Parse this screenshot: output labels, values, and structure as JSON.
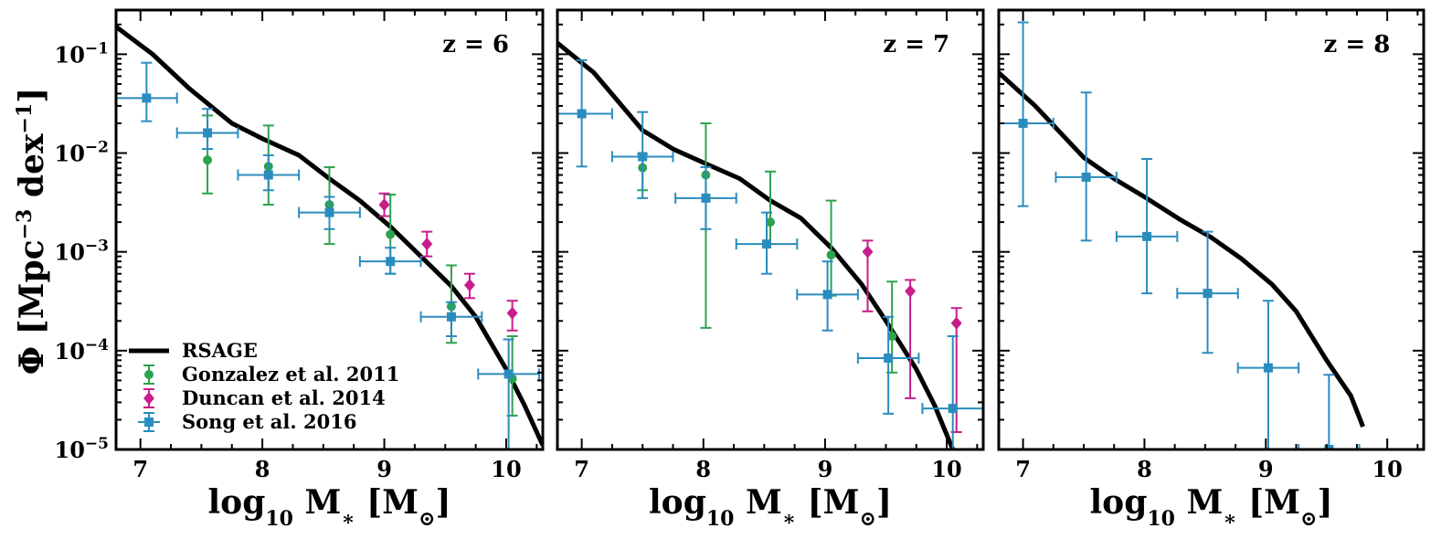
{
  "colors": {
    "model": "#000000",
    "gonzalez": "#2ca24e",
    "duncan": "#c81d8c",
    "song": "#2b8cbe"
  },
  "figure": {
    "ylabel_main": "Φ [Mpc",
    "ylabel_exp": "−3",
    "ylabel_dex": " dex",
    "ylabel_exp2": "−1",
    "ylabel_close": "]",
    "xlabel_log": "log",
    "xlabel_sub": "10",
    "xlabel_m": " M",
    "xlabel_star": "∗",
    "xlabel_unit": " [M",
    "xlabel_sun": "⊙",
    "xlabel_close": "]"
  },
  "legend": {
    "placement": "lower-left",
    "entries": [
      {
        "label": "RSAGE",
        "series": "model"
      },
      {
        "label": "Gonzalez et al. 2011",
        "series": "gonzalez"
      },
      {
        "label": "Duncan et al. 2014",
        "series": "duncan"
      },
      {
        "label": "Song et al. 2016",
        "series": "song"
      }
    ]
  },
  "chart_data": [
    {
      "type": "line",
      "label": "z = 6",
      "xlim": [
        6.8,
        10.3
      ],
      "ylim": [
        1e-05,
        0.28
      ],
      "yscale": "log",
      "xticks": [
        7,
        8,
        9,
        10
      ],
      "yticks": [
        {
          "base": "10",
          "exp": "−5",
          "v": 1e-05
        },
        {
          "base": "10",
          "exp": "−4",
          "v": 0.0001
        },
        {
          "base": "10",
          "exp": "−3",
          "v": 0.001
        },
        {
          "base": "10",
          "exp": "−2",
          "v": 0.01
        },
        {
          "base": "10",
          "exp": "−1",
          "v": 0.1
        }
      ],
      "model": {
        "name": "RSAGE",
        "x": [
          6.8,
          7.1,
          7.4,
          7.75,
          8.0,
          8.3,
          8.55,
          8.8,
          9.05,
          9.3,
          9.55,
          9.75,
          10.0,
          10.15,
          10.3
        ],
        "y": [
          0.19,
          0.1,
          0.045,
          0.02,
          0.014,
          0.0095,
          0.0055,
          0.0033,
          0.0018,
          0.0009,
          0.00045,
          0.00022,
          6.5e-05,
          2.8e-05,
          1.1e-05
        ]
      },
      "gonzalez": {
        "name": "Gonzalez et al. 2011",
        "x": [
          7.55,
          8.05,
          8.55,
          9.05,
          9.55,
          10.05
        ],
        "y": [
          0.0085,
          0.0073,
          0.003,
          0.0015,
          0.00028,
          5.2e-05
        ],
        "ylo": [
          0.0039,
          0.003,
          0.0012,
          0.0006,
          0.00012,
          2.2e-05
        ],
        "yhi": [
          0.024,
          0.019,
          0.0072,
          0.0038,
          0.00073,
          0.00014
        ]
      },
      "duncan": {
        "name": "Duncan et al. 2014",
        "x": [
          9.0,
          9.35,
          9.7,
          10.05
        ],
        "y": [
          0.003,
          0.0012,
          0.00046,
          0.00024
        ],
        "ylo": [
          0.0023,
          0.0009,
          0.00034,
          0.00016
        ],
        "yhi": [
          0.0039,
          0.0016,
          0.0006,
          0.00032
        ]
      },
      "song": {
        "name": "Song et al. 2016",
        "x": [
          7.05,
          7.55,
          8.05,
          8.55,
          9.05,
          9.55,
          10.02
        ],
        "y": [
          0.036,
          0.016,
          0.006,
          0.0025,
          0.0008,
          0.00022,
          5.8e-05
        ],
        "ylo": [
          0.021,
          0.011,
          0.0042,
          0.0017,
          0.0006,
          0.00014,
          1e-05
        ],
        "yhi": [
          0.082,
          0.028,
          0.0095,
          0.0036,
          0.0011,
          0.00031,
          0.00013
        ],
        "xerr": 0.25
      }
    },
    {
      "type": "line",
      "label": "z = 7",
      "xlim": [
        6.8,
        10.3
      ],
      "ylim": [
        1e-05,
        0.28
      ],
      "yscale": "log",
      "xticks": [
        7,
        8,
        9,
        10
      ],
      "yticks": [],
      "model": {
        "name": "RSAGE",
        "x": [
          6.8,
          7.1,
          7.5,
          7.75,
          8.0,
          8.3,
          8.55,
          8.8,
          9.05,
          9.3,
          9.5,
          9.75,
          9.9,
          10.05
        ],
        "y": [
          0.13,
          0.065,
          0.017,
          0.011,
          0.008,
          0.0055,
          0.0033,
          0.0022,
          0.0011,
          0.00047,
          0.0002,
          6.5e-05,
          2.8e-05,
          1e-05
        ]
      },
      "gonzalez": {
        "name": "Gonzalez et al. 2011",
        "x": [
          7.5,
          8.02,
          8.55,
          9.05,
          9.55
        ],
        "y": [
          0.0071,
          0.006,
          0.002,
          0.00093,
          0.00014
        ],
        "ylo": [
          0.0042,
          0.00017,
          0.0012,
          0.00036,
          6e-05
        ],
        "yhi": [
          0.0098,
          0.02,
          0.0065,
          0.0033,
          0.0005
        ]
      },
      "duncan": {
        "name": "Duncan et al. 2014",
        "x": [
          9.35,
          9.7,
          10.08
        ],
        "y": [
          0.001,
          0.0004,
          0.00019
        ],
        "ylo": [
          0.00025,
          3.3e-05,
          1.5e-05
        ],
        "yhi": [
          0.0013,
          0.00052,
          0.00027
        ]
      },
      "song": {
        "name": "Song et al. 2016",
        "x": [
          7.0,
          7.5,
          8.02,
          8.52,
          9.02,
          9.52,
          10.05
        ],
        "y": [
          0.025,
          0.0092,
          0.0035,
          0.0012,
          0.00037,
          8.4e-05,
          2.6e-05
        ],
        "ylo": [
          0.0073,
          0.0035,
          0.0017,
          0.0006,
          0.00016,
          2.3e-05,
          1e-05
        ],
        "yhi": [
          0.087,
          0.026,
          0.0072,
          0.0025,
          0.0008,
          0.00022,
          0.00014
        ],
        "xerr": 0.25
      }
    },
    {
      "type": "line",
      "label": "z = 8",
      "xlim": [
        6.8,
        10.3
      ],
      "ylim": [
        1e-05,
        0.28
      ],
      "yscale": "log",
      "xticks": [
        7,
        8,
        9,
        10
      ],
      "yticks": [],
      "model": {
        "name": "RSAGE",
        "x": [
          6.8,
          7.1,
          7.5,
          7.75,
          8.0,
          8.3,
          8.55,
          8.8,
          9.05,
          9.25,
          9.5,
          9.7,
          9.8
        ],
        "y": [
          0.065,
          0.03,
          0.009,
          0.0055,
          0.0036,
          0.0021,
          0.0014,
          0.00085,
          0.00047,
          0.00025,
          8e-05,
          3.5e-05,
          1.7e-05
        ]
      },
      "gonzalez": {
        "name": "Gonzalez et al. 2011",
        "x": [],
        "y": [],
        "ylo": [],
        "yhi": []
      },
      "duncan": {
        "name": "Duncan et al. 2014",
        "x": [],
        "y": [],
        "ylo": [],
        "yhi": []
      },
      "song": {
        "name": "Song et al. 2016",
        "x": [
          7.0,
          7.52,
          8.02,
          8.52,
          9.02,
          9.52
        ],
        "y": [
          0.02,
          0.0057,
          0.00143,
          0.00038,
          6.7e-05,
          1e-05
        ],
        "ylo": [
          0.0029,
          0.0013,
          0.00038,
          9.5e-05,
          1e-05,
          1e-05
        ],
        "yhi": [
          0.21,
          0.041,
          0.0087,
          0.0016,
          0.00032,
          5.7e-05
        ],
        "xerr": 0.25
      }
    }
  ]
}
